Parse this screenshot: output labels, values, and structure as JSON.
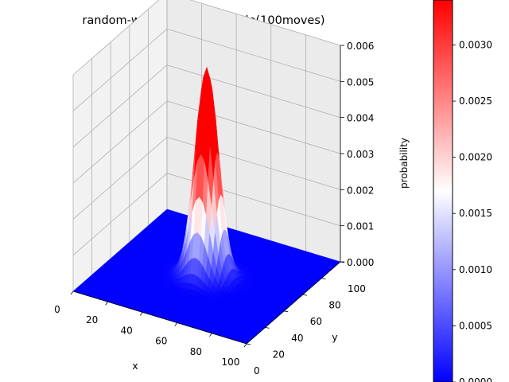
{
  "chart_data": {
    "type": "surface3d",
    "title": "random-walk on a quadrangle(100moves)",
    "xlabel": "x",
    "ylabel": "y",
    "zlabel": "probability",
    "xlim": [
      0,
      100
    ],
    "ylim": [
      0,
      100
    ],
    "zlim": [
      0,
      0.006
    ],
    "x_ticks": [
      0,
      20,
      40,
      60,
      80,
      100
    ],
    "y_ticks": [
      0,
      20,
      40,
      60,
      80,
      100
    ],
    "z_ticks": [
      0.0,
      0.001,
      0.002,
      0.003,
      0.004,
      0.005,
      0.006
    ],
    "z_tick_labels": [
      "0.000",
      "0.001",
      "0.002",
      "0.003",
      "0.004",
      "0.005",
      "0.006"
    ],
    "surface": {
      "shape": "gaussian-peak",
      "center_x": 50,
      "center_y": 50,
      "peak_probability": 0.0058,
      "spread": 6
    },
    "colorbar": {
      "colormap": "bwr",
      "min": 0.0,
      "max": 0.0034,
      "ticks": [
        0.0,
        0.0005,
        0.001,
        0.0015,
        0.002,
        0.0025,
        0.003
      ],
      "tick_labels": [
        "0.0000",
        "0.0005",
        "0.0010",
        "0.0015",
        "0.0020",
        "0.0025",
        "0.0030"
      ]
    },
    "grid": true,
    "colors": {
      "low": "#0000ff",
      "mid": "#ffffff",
      "high": "#ff0000"
    }
  }
}
